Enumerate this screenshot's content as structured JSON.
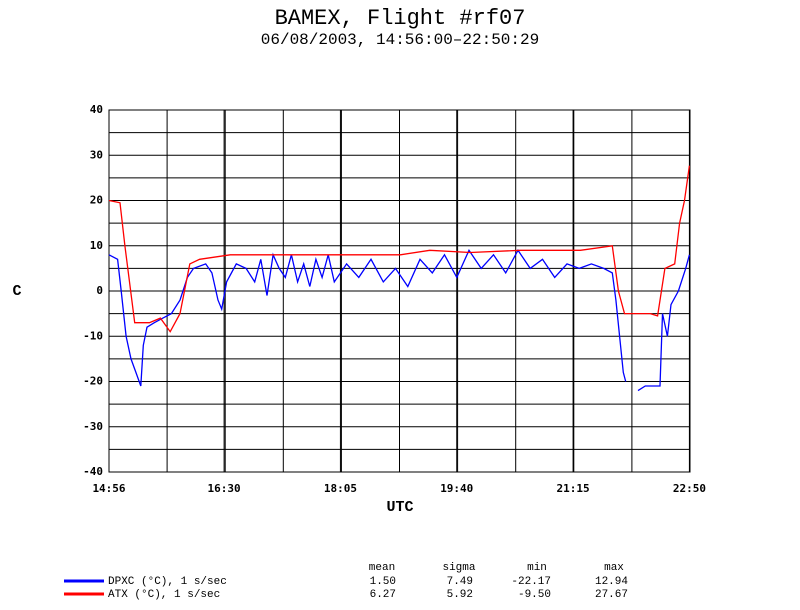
{
  "chart_data": {
    "type": "line",
    "title": "BAMEX, Flight #rf07",
    "subtitle": "06/08/2003, 14:56:00–22:50:29",
    "xlabel": "UTC",
    "ylabel": "C",
    "xlim": [
      "14:56:00",
      "22:50:29"
    ],
    "xticks": [
      "14:56",
      "16:30",
      "18:05",
      "19:40",
      "21:15",
      "22:50"
    ],
    "ylim": [
      -40,
      40
    ],
    "yticks": [
      -40,
      -30,
      -20,
      -10,
      0,
      10,
      20,
      30,
      40
    ],
    "grid": true,
    "stats_columns": [
      "mean",
      "sigma",
      "min",
      "max"
    ],
    "series": [
      {
        "name": "DPXC (°C), 1 s/sec",
        "color": "#0000ff",
        "stats": [
          "1.50",
          "7.49",
          "-22.17",
          "12.94"
        ],
        "x": [
          "14:56",
          "15:03",
          "15:06",
          "15:10",
          "15:14",
          "15:18",
          "15:22",
          "15:24",
          "15:27",
          "15:33",
          "15:40",
          "15:47",
          "15:54",
          "16:00",
          "16:05",
          "16:15",
          "16:20",
          "16:25",
          "16:28",
          "16:32",
          "16:40",
          "16:48",
          "16:55",
          "17:00",
          "17:05",
          "17:10",
          "17:15",
          "17:20",
          "17:25",
          "17:30",
          "17:35",
          "17:40",
          "17:45",
          "17:50",
          "17:55",
          "18:00",
          "18:10",
          "18:20",
          "18:30",
          "18:40",
          "18:50",
          "19:00",
          "19:10",
          "19:20",
          "19:30",
          "19:40",
          "19:50",
          "20:00",
          "20:10",
          "20:20",
          "20:30",
          "20:40",
          "20:50",
          "21:00",
          "21:10",
          "21:20",
          "21:30",
          "21:40",
          "21:47",
          "21:50",
          "21:53",
          "21:56",
          "21:58",
          "22:04",
          "22:08",
          "22:14",
          "22:26",
          "22:28",
          "22:32",
          "22:35",
          "22:41",
          "22:47",
          "22:50"
        ],
        "values": [
          8,
          7,
          0,
          -10,
          -15,
          -18,
          -21,
          -12,
          -8,
          -7,
          -6,
          -5,
          -2,
          3,
          5,
          6,
          4,
          -2,
          -4,
          2,
          6,
          5,
          2,
          7,
          -1,
          8,
          5,
          3,
          8,
          2,
          6,
          1,
          7,
          3,
          8,
          2,
          6,
          3,
          7,
          2,
          5,
          1,
          7,
          4,
          8,
          3,
          9,
          5,
          8,
          4,
          9,
          5,
          7,
          3,
          6,
          5,
          6,
          5,
          4,
          -2,
          -10,
          -18,
          -20,
          null,
          -22,
          -21,
          -21,
          -5,
          -10,
          -3,
          0,
          5,
          8
        ]
      },
      {
        "name": "ATX (°C), 1 s/sec",
        "color": "#ff0000",
        "stats": [
          "6.27",
          "5.92",
          "-9.50",
          "27.67"
        ],
        "x": [
          "14:56",
          "15:05",
          "15:09",
          "15:17",
          "15:29",
          "15:38",
          "15:46",
          "15:54",
          "16:02",
          "16:10",
          "16:35",
          "17:30",
          "18:20",
          "18:54",
          "19:18",
          "19:51",
          "20:32",
          "21:21",
          "21:47",
          "21:52",
          "21:57",
          "22:18",
          "22:24",
          "22:30",
          "22:38",
          "22:42",
          "22:46",
          "22:50"
        ],
        "values": [
          20,
          19.5,
          10,
          -7,
          -7,
          -6,
          -9,
          -5,
          6,
          7,
          8,
          8,
          8,
          8,
          9,
          8.5,
          9,
          9,
          10,
          0,
          -5,
          -5,
          -5.5,
          5,
          6,
          15,
          20,
          27.7
        ]
      }
    ]
  }
}
